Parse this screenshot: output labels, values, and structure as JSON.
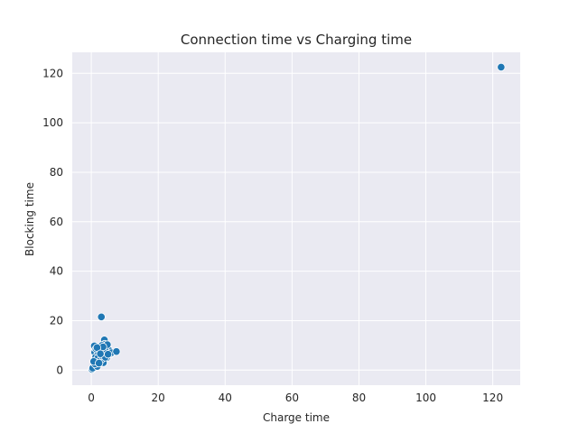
{
  "chart_data": {
    "type": "scatter",
    "title": "Connection time vs Charging time",
    "xlabel": "Charge time",
    "ylabel": "Blocking time",
    "xlim": [
      -5.7,
      128.2
    ],
    "ylim": [
      -6.1,
      128.5
    ],
    "xticks": [
      0,
      20,
      40,
      60,
      80,
      100,
      120
    ],
    "yticks": [
      0,
      20,
      40,
      60,
      80,
      100,
      120
    ],
    "grid": true,
    "background": "#eaeaf2",
    "grid_color": "#ffffff",
    "marker_color": "#1f77b4",
    "marker_edge_color": "#ffffff",
    "series": [
      {
        "x": [
          122.5,
          3.0,
          3.9,
          0.2,
          0.4,
          0.9,
          1.2,
          1.5,
          1.8,
          2.0,
          2.2,
          2.5,
          2.8,
          3.1,
          3.4,
          3.7,
          4.0,
          4.3,
          4.6,
          4.9,
          5.3,
          5.6,
          6.0,
          7.5,
          1.0,
          1.3,
          1.6,
          2.1,
          2.6,
          3.2,
          3.6,
          4.1,
          4.4,
          4.8,
          1.1,
          1.9,
          2.4,
          2.9,
          3.3,
          3.8,
          0.7,
          1.4,
          2.3,
          3.5,
          4.2,
          5.0,
          1.7,
          2.7
        ],
        "y": [
          122.5,
          21.5,
          12.2,
          0.3,
          0.8,
          9.8,
          4.5,
          2.0,
          1.5,
          8.5,
          3.2,
          6.0,
          7.5,
          4.0,
          9.5,
          5.5,
          10.5,
          7.8,
          5.0,
          9.0,
          8.0,
          6.5,
          7.0,
          7.5,
          7.2,
          5.3,
          3.8,
          6.8,
          9.2,
          10.0,
          3.0,
          8.8,
          6.2,
          10.3,
          2.5,
          4.8,
          8.2,
          4.2,
          5.8,
          7.0,
          3.5,
          8.6,
          2.8,
          9.4,
          5.2,
          6.4,
          9.1,
          6.6
        ]
      }
    ]
  }
}
